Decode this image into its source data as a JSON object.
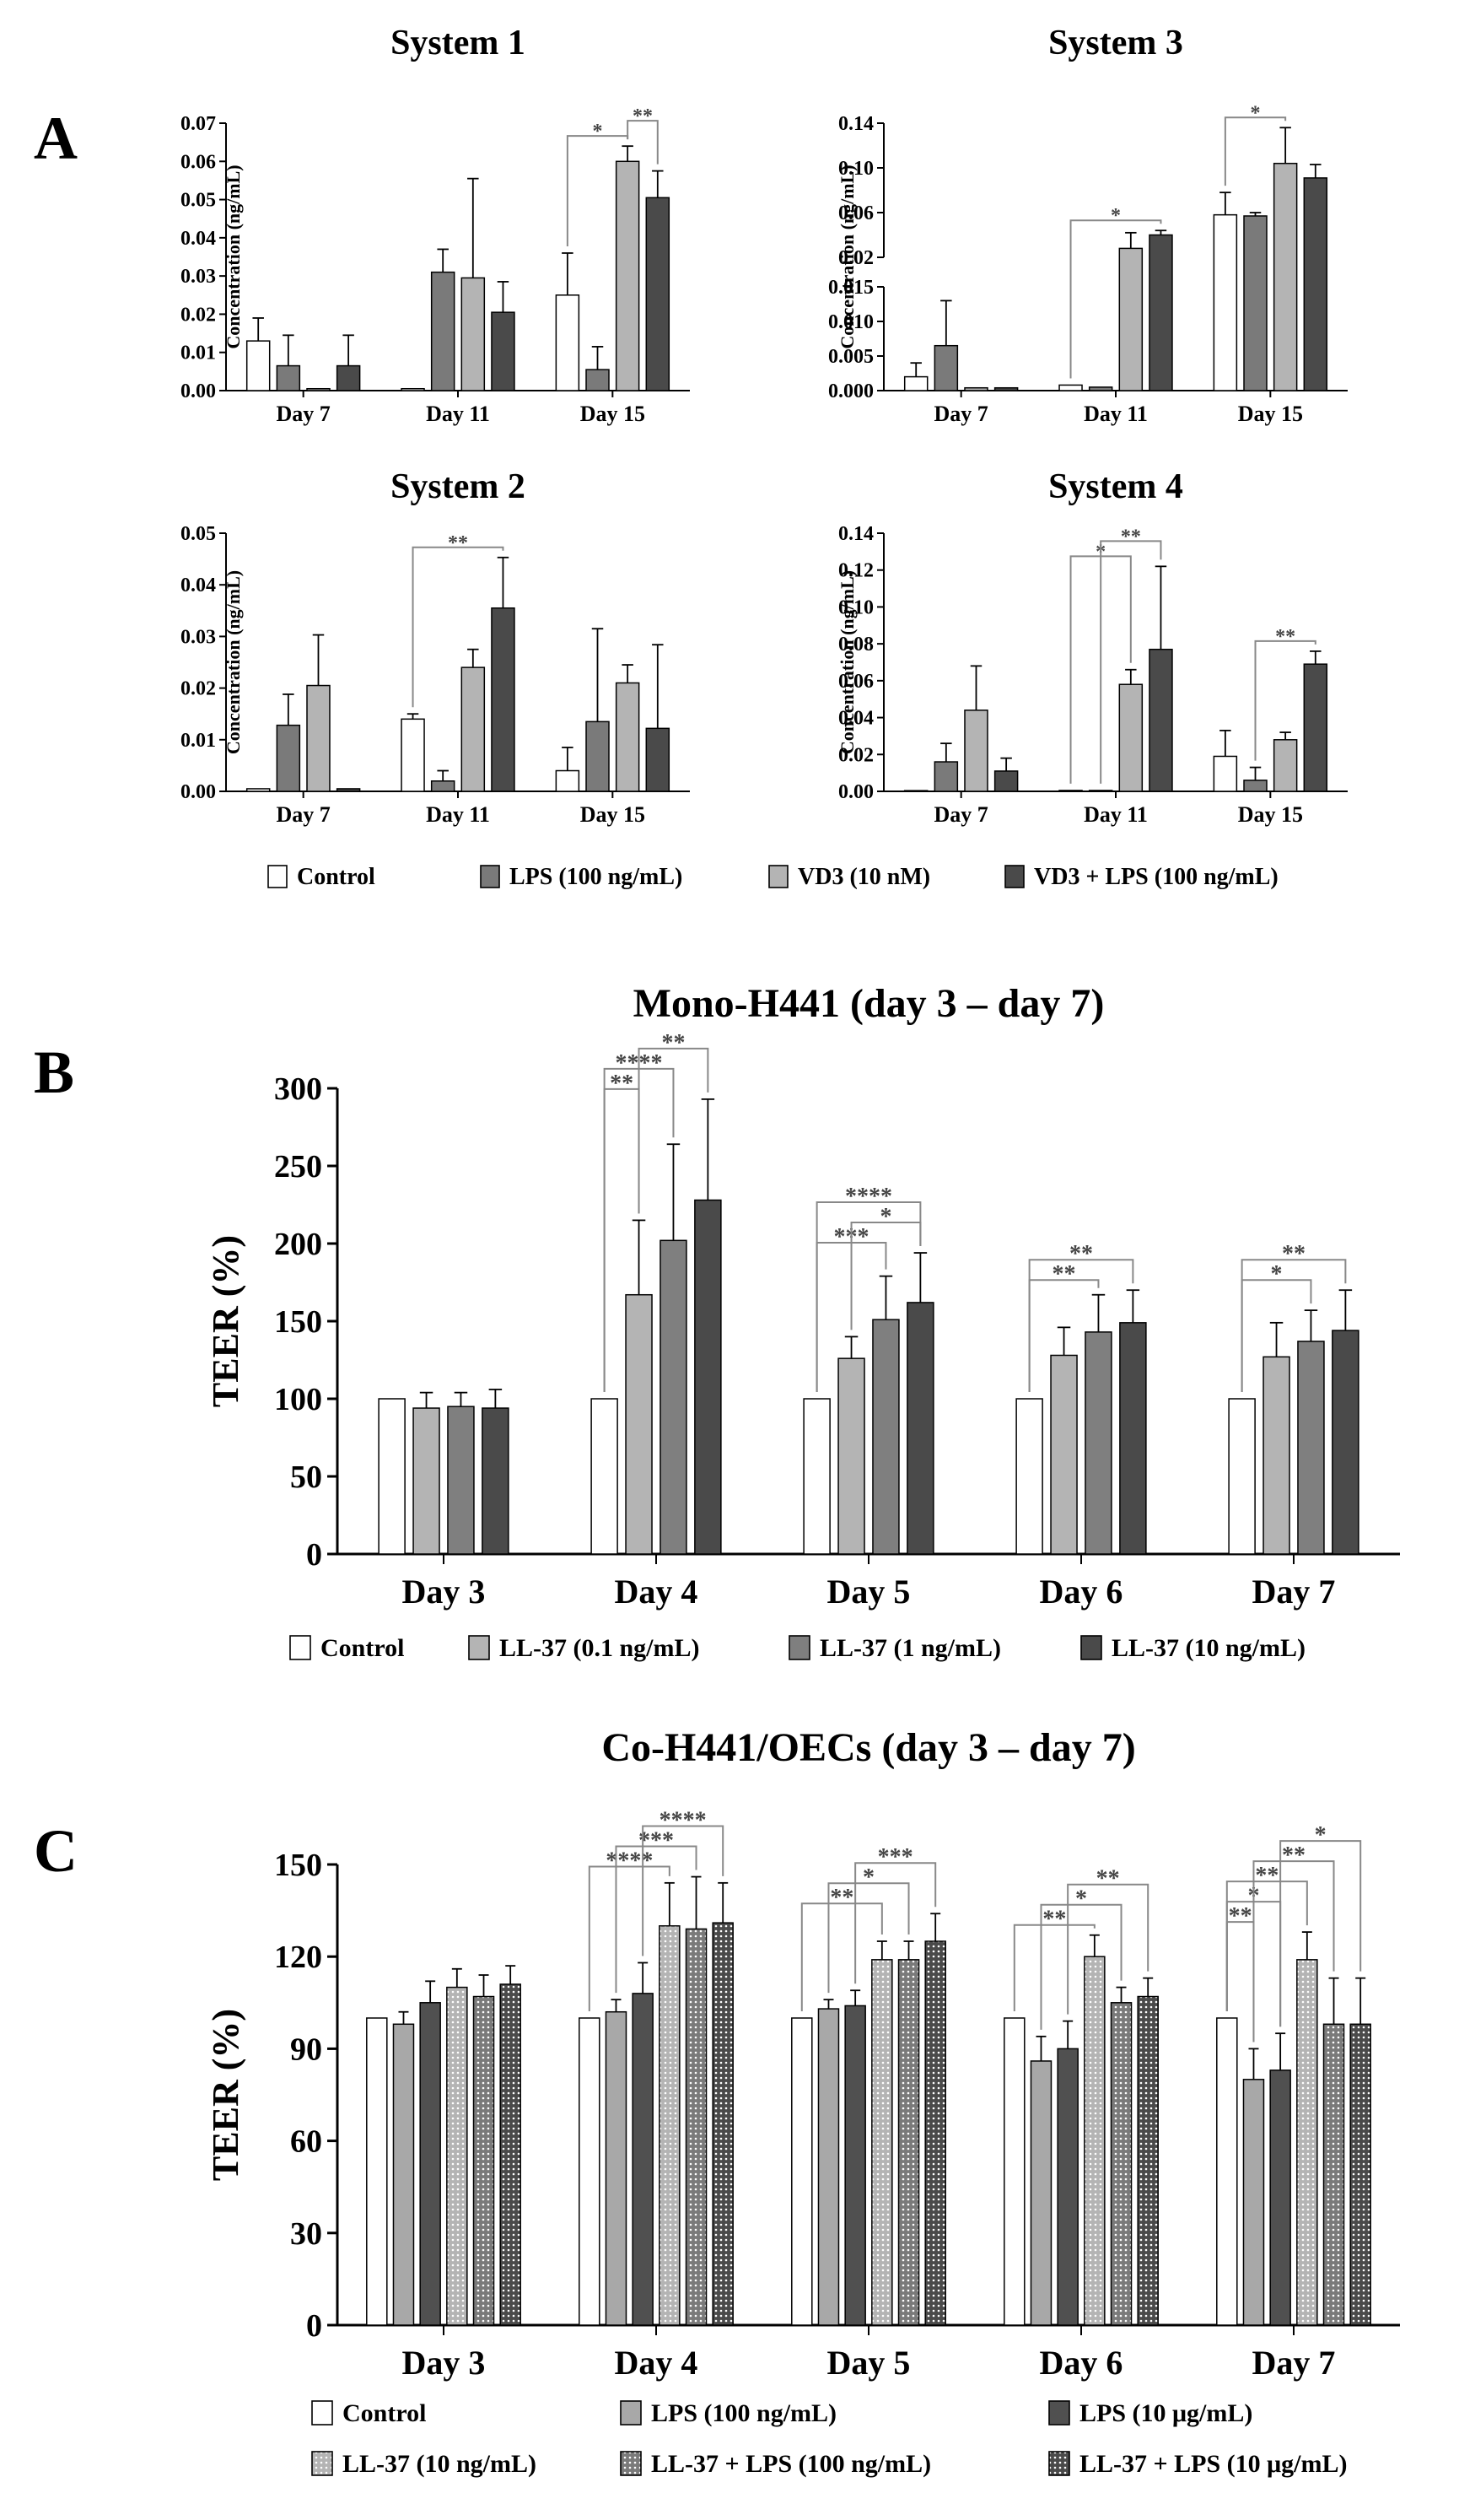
{
  "colors": {
    "control": "#ffffff",
    "lps": "#7a7a7a",
    "vd3": "#b4b4b4",
    "vd3_lps": "#4a4a4a",
    "ll37_01": "#b4b4b4",
    "ll37_1": "#7f7f7f",
    "ll37_10": "#4a4a4a",
    "c_lps100": "#a8a8a8",
    "c_lps10": "#505050",
    "bracket": "#888888"
  },
  "panel_labels": [
    "A",
    "B",
    "C"
  ],
  "chart_data": [
    {
      "id": "A1",
      "type": "bar",
      "title": "System 1",
      "ylabel": "Concentration (ng/mL)",
      "ylim": [
        0,
        0.07
      ],
      "yticks": [
        "0.00",
        "0.01",
        "0.02",
        "0.03",
        "0.04",
        "0.05",
        "0.06",
        "0.07"
      ],
      "categories": [
        "Day 7",
        "Day 11",
        "Day 15"
      ],
      "series": [
        {
          "name": "Control",
          "color": "control",
          "values": [
            0.013,
            0.0005,
            0.025
          ],
          "errors": [
            0.006,
            0.0,
            0.011
          ]
        },
        {
          "name": "LPS (100 ng/mL)",
          "color": "lps",
          "values": [
            0.0065,
            0.031,
            0.0055
          ],
          "errors": [
            0.008,
            0.006,
            0.006
          ]
        },
        {
          "name": "VD3 (10 nM)",
          "color": "vd3",
          "values": [
            0.0005,
            0.0295,
            0.06
          ],
          "errors": [
            0.0,
            0.026,
            0.004
          ]
        },
        {
          "name": "VD3 + LPS (100 ng/mL)",
          "color": "vd3_lps",
          "values": [
            0.0065,
            0.0205,
            0.0505
          ],
          "errors": [
            0.008,
            0.008,
            0.007
          ]
        }
      ],
      "significance": [
        {
          "cat": 2,
          "from": 0,
          "to": 2,
          "label": "*",
          "level": 1
        },
        {
          "cat": 2,
          "from": 2,
          "to": 3,
          "label": "**",
          "level": 2
        }
      ]
    },
    {
      "id": "A3",
      "type": "bar",
      "title": "System 3",
      "ylabel": "Concentration (ng/mL)",
      "broken_axis": {
        "lower": [
          0,
          0.015
        ],
        "upper": [
          0.02,
          0.14
        ]
      },
      "yticks_lower": [
        "0.000",
        "0.005",
        "0.010",
        "0.015"
      ],
      "yticks_upper": [
        "0.02",
        "0.06",
        "0.10",
        "0.14"
      ],
      "categories": [
        "Day 7",
        "Day 11",
        "Day 15"
      ],
      "series": [
        {
          "name": "Control",
          "color": "control",
          "values": [
            0.002,
            0.0008,
            0.058
          ],
          "errors": [
            0.002,
            0.0,
            0.02
          ]
        },
        {
          "name": "LPS (100 ng/mL)",
          "color": "lps",
          "values": [
            0.0065,
            0.0005,
            0.057
          ],
          "errors": [
            0.0065,
            0.0,
            0.003
          ]
        },
        {
          "name": "VD3 (10 nM)",
          "color": "vd3",
          "values": [
            0.0004,
            0.028,
            0.104
          ],
          "errors": [
            0.0,
            0.014,
            0.032
          ]
        },
        {
          "name": "VD3 + LPS (100 ng/mL)",
          "color": "vd3_lps",
          "values": [
            0.0004,
            0.04,
            0.091
          ],
          "errors": [
            0.0,
            0.004,
            0.012
          ]
        }
      ],
      "significance": [
        {
          "cat": 1,
          "from": 0,
          "to": 3,
          "label": "*",
          "level": 1
        },
        {
          "cat": 2,
          "from": 0,
          "to": 2,
          "label": "*",
          "level": 1
        }
      ]
    },
    {
      "id": "A2",
      "type": "bar",
      "title": "System 2",
      "ylabel": "Concentration (ng/mL)",
      "ylim": [
        0,
        0.05
      ],
      "yticks": [
        "0.00",
        "0.01",
        "0.02",
        "0.03",
        "0.04",
        "0.05"
      ],
      "categories": [
        "Day 7",
        "Day 11",
        "Day 15"
      ],
      "series": [
        {
          "name": "Control",
          "color": "control",
          "values": [
            0.0005,
            0.014,
            0.004
          ],
          "errors": [
            0.0,
            0.001,
            0.0045
          ]
        },
        {
          "name": "LPS (100 ng/mL)",
          "color": "lps",
          "values": [
            0.0128,
            0.002,
            0.0135
          ],
          "errors": [
            0.006,
            0.002,
            0.018
          ]
        },
        {
          "name": "VD3 (10 nM)",
          "color": "vd3",
          "values": [
            0.0205,
            0.024,
            0.021
          ],
          "errors": [
            0.0098,
            0.0035,
            0.0035
          ]
        },
        {
          "name": "VD3 + LPS (100 ng/mL)",
          "color": "vd3_lps",
          "values": [
            0.0005,
            0.0355,
            0.0122
          ],
          "errors": [
            0.0,
            0.0098,
            0.0162
          ]
        }
      ],
      "significance": [
        {
          "cat": 1,
          "from": 0,
          "to": 3,
          "label": "**",
          "level": 1
        }
      ]
    },
    {
      "id": "A4",
      "type": "bar",
      "title": "System 4",
      "ylabel": "Concentration (ng/mL)",
      "ylim": [
        0,
        0.14
      ],
      "yticks": [
        "0.00",
        "0.02",
        "0.04",
        "0.06",
        "0.08",
        "0.10",
        "0.12",
        "0.14"
      ],
      "categories": [
        "Day 7",
        "Day 11",
        "Day 15"
      ],
      "series": [
        {
          "name": "Control",
          "color": "control",
          "values": [
            0.0004,
            0.0005,
            0.019
          ],
          "errors": [
            0.0,
            0.0,
            0.014
          ]
        },
        {
          "name": "LPS (100 ng/mL)",
          "color": "lps",
          "values": [
            0.016,
            0.0005,
            0.006
          ],
          "errors": [
            0.01,
            0.0,
            0.007
          ]
        },
        {
          "name": "VD3 (10 nM)",
          "color": "vd3",
          "values": [
            0.044,
            0.058,
            0.028
          ],
          "errors": [
            0.024,
            0.008,
            0.004
          ]
        },
        {
          "name": "VD3 + LPS (100 ng/mL)",
          "color": "vd3_lps",
          "values": [
            0.011,
            0.077,
            0.069
          ],
          "errors": [
            0.007,
            0.045,
            0.007
          ]
        }
      ],
      "significance": [
        {
          "cat": 1,
          "from": 0,
          "to": 2,
          "label": "*",
          "level": 1
        },
        {
          "cat": 1,
          "from": 1,
          "to": 3,
          "label": "**",
          "level": 2
        },
        {
          "cat": 2,
          "from": 1,
          "to": 3,
          "label": "**",
          "level": 1
        }
      ]
    },
    {
      "id": "B",
      "type": "bar",
      "title": "Mono-H441 (day 3 – day 7)",
      "ylabel": "TEER (%)",
      "ylim": [
        0,
        300
      ],
      "yticks": [
        "0",
        "50",
        "100",
        "150",
        "200",
        "250",
        "300"
      ],
      "categories": [
        "Day 3",
        "Day 4",
        "Day 5",
        "Day 6",
        "Day 7"
      ],
      "series": [
        {
          "name": "Control",
          "color": "control",
          "values": [
            100,
            100,
            100,
            100,
            100
          ],
          "errors": [
            0,
            0,
            0,
            0,
            0
          ]
        },
        {
          "name": "LL-37 (0.1 ng/mL)",
          "color": "ll37_01",
          "values": [
            94,
            167,
            126,
            128,
            127
          ],
          "errors": [
            10,
            48,
            14,
            18,
            22
          ]
        },
        {
          "name": "LL-37 (1 ng/mL)",
          "color": "ll37_1",
          "values": [
            95,
            202,
            151,
            143,
            137
          ],
          "errors": [
            9,
            62,
            28,
            24,
            20
          ]
        },
        {
          "name": "LL-37 (10 ng/mL)",
          "color": "ll37_10",
          "values": [
            94,
            228,
            162,
            149,
            144
          ],
          "errors": [
            12,
            65,
            32,
            21,
            26
          ]
        }
      ],
      "significance": [
        {
          "cat": 1,
          "from": 0,
          "to": 1,
          "label": "**",
          "level": 1
        },
        {
          "cat": 1,
          "from": 0,
          "to": 2,
          "label": "****",
          "level": 2
        },
        {
          "cat": 1,
          "from": 1,
          "to": 3,
          "label": "**",
          "level": 3
        },
        {
          "cat": 2,
          "from": 0,
          "to": 2,
          "label": "***",
          "level": 1
        },
        {
          "cat": 2,
          "from": 1,
          "to": 3,
          "label": "*",
          "level": 2
        },
        {
          "cat": 2,
          "from": 0,
          "to": 3,
          "label": "****",
          "level": 3
        },
        {
          "cat": 3,
          "from": 0,
          "to": 2,
          "label": "**",
          "level": 1
        },
        {
          "cat": 3,
          "from": 0,
          "to": 3,
          "label": "**",
          "level": 2
        },
        {
          "cat": 4,
          "from": 0,
          "to": 2,
          "label": "*",
          "level": 1
        },
        {
          "cat": 4,
          "from": 0,
          "to": 3,
          "label": "**",
          "level": 2
        }
      ]
    },
    {
      "id": "C",
      "type": "bar",
      "title": "Co-H441/OECs (day 3 – day 7)",
      "ylabel": "TEER (%)",
      "ylim": [
        0,
        150
      ],
      "yticks": [
        "0",
        "30",
        "60",
        "90",
        "120",
        "150"
      ],
      "categories": [
        "Day 3",
        "Day 4",
        "Day 5",
        "Day 6",
        "Day 7"
      ],
      "series": [
        {
          "name": "Control",
          "color": "control",
          "pattern": "none",
          "values": [
            100,
            100,
            100,
            100,
            100
          ],
          "errors": [
            0,
            0,
            0,
            0,
            0
          ]
        },
        {
          "name": "LPS (100 ng/mL)",
          "color": "c_lps100",
          "pattern": "none",
          "values": [
            98,
            102,
            103,
            86,
            80
          ],
          "errors": [
            4,
            4,
            3,
            8,
            10
          ]
        },
        {
          "name": "LPS (10 μg/mL)",
          "color": "c_lps10",
          "pattern": "none",
          "values": [
            105,
            108,
            104,
            90,
            83
          ],
          "errors": [
            7,
            10,
            5,
            9,
            12
          ]
        },
        {
          "name": "LL-37 (10 ng/mL)",
          "color": "vd3",
          "pattern": "dots",
          "values": [
            110,
            130,
            119,
            120,
            119
          ],
          "errors": [
            6,
            14,
            6,
            7,
            9
          ]
        },
        {
          "name": "LL-37 + LPS (100 ng/mL)",
          "color": "lps",
          "pattern": "dots",
          "values": [
            107,
            129,
            119,
            105,
            98
          ],
          "errors": [
            7,
            17,
            6,
            5,
            15
          ]
        },
        {
          "name": "LL-37 + LPS (10 μg/mL)",
          "color": "vd3_lps",
          "pattern": "dots",
          "values": [
            111,
            131,
            125,
            107,
            98
          ],
          "errors": [
            6,
            13,
            9,
            6,
            15
          ]
        }
      ],
      "significance": [
        {
          "cat": 1,
          "from": 0,
          "to": 3,
          "label": "****",
          "level": 1
        },
        {
          "cat": 1,
          "from": 1,
          "to": 4,
          "label": "***",
          "level": 2
        },
        {
          "cat": 1,
          "from": 2,
          "to": 5,
          "label": "****",
          "level": 3
        },
        {
          "cat": 2,
          "from": 0,
          "to": 3,
          "label": "**",
          "level": 1
        },
        {
          "cat": 2,
          "from": 1,
          "to": 4,
          "label": "*",
          "level": 2
        },
        {
          "cat": 2,
          "from": 2,
          "to": 5,
          "label": "***",
          "level": 3
        },
        {
          "cat": 3,
          "from": 0,
          "to": 3,
          "label": "**",
          "level": 1
        },
        {
          "cat": 3,
          "from": 1,
          "to": 4,
          "label": "*",
          "level": 2
        },
        {
          "cat": 3,
          "from": 2,
          "to": 5,
          "label": "**",
          "level": 3
        },
        {
          "cat": 4,
          "from": 0,
          "to": 1,
          "label": "**",
          "level": 1
        },
        {
          "cat": 4,
          "from": 0,
          "to": 2,
          "label": "*",
          "level": 2
        },
        {
          "cat": 4,
          "from": 0,
          "to": 3,
          "label": "**",
          "level": 3
        },
        {
          "cat": 4,
          "from": 1,
          "to": 4,
          "label": "**",
          "level": 4
        },
        {
          "cat": 4,
          "from": 2,
          "to": 5,
          "label": "*",
          "level": 5
        }
      ]
    }
  ]
}
